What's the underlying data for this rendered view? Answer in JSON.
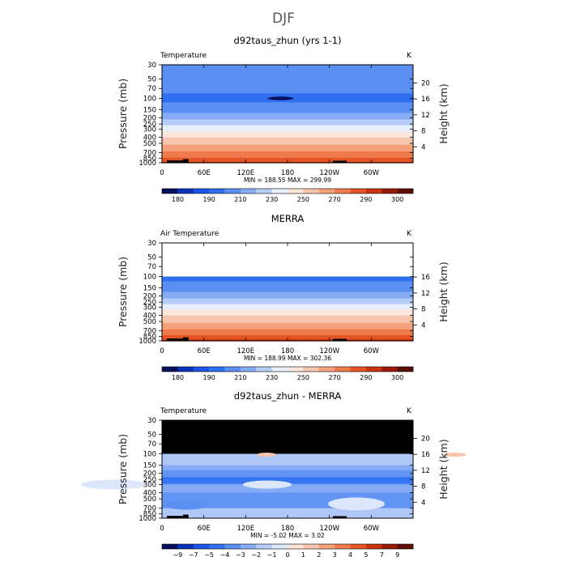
{
  "figure": {
    "title": "DJF"
  },
  "colors": {
    "abs_scale": [
      "#08105e",
      "#0a32b8",
      "#1a54e8",
      "#2f6ff0",
      "#5b8ff2",
      "#86acf5",
      "#b6cdf8",
      "#e7eefc",
      "#fbe6dc",
      "#f7c5ad",
      "#f4a17c",
      "#ef7b4c",
      "#e55424",
      "#c93412",
      "#981a08",
      "#5e0d05"
    ],
    "diff_scale": [
      "#08105e",
      "#0a32b8",
      "#1a54e8",
      "#2f6ff0",
      "#5b8ff2",
      "#86acf5",
      "#b6cdf8",
      "#dce7fb",
      "#fbe4d8",
      "#f7c5ad",
      "#f4a17c",
      "#ef7b4c",
      "#e55424",
      "#c93412",
      "#981a08",
      "#5e0d05"
    ],
    "mask": "#000000"
  },
  "chart_data": [
    {
      "type": "heatmap",
      "title": "d92taus_zhun (yrs 1-1)",
      "left_label": "Temperature",
      "units_label": "K",
      "ylabel": "Pressure (mb)",
      "ylabel_right": "Height (km)",
      "xlabel": "",
      "xticks": [
        "0",
        "60E",
        "120E",
        "180",
        "120W",
        "60W"
      ],
      "xtick_values": [
        0,
        60,
        120,
        180,
        240,
        300
      ],
      "xlim": [
        0,
        360
      ],
      "yticks": [
        "30",
        "50",
        "70",
        "100",
        "150",
        "200",
        "250",
        "300",
        "400",
        "500",
        "700",
        "850",
        "1000"
      ],
      "ytick_values": [
        30,
        50,
        70,
        100,
        150,
        200,
        250,
        300,
        400,
        500,
        700,
        850,
        1000
      ],
      "ylim": [
        30,
        1000
      ],
      "height_ticks": [
        "4",
        "8",
        "12",
        "16",
        "20"
      ],
      "height_values": [
        4,
        8,
        12,
        16,
        20
      ],
      "stats": {
        "min_label": "MIN =",
        "min": "188.55",
        "max_label": "MAX =",
        "max": "299.99"
      },
      "colorbar_labels": [
        "180",
        "190",
        "210",
        "230",
        "250",
        "270",
        "290",
        "300"
      ],
      "colorbar_scale": "abs",
      "profile": {
        "pressure": [
          30,
          50,
          70,
          100,
          150,
          200,
          250,
          300,
          400,
          500,
          700,
          850,
          1000
        ],
        "value": [
          207,
          210,
          203,
          197,
          206,
          217,
          228,
          236,
          249,
          258,
          272,
          281,
          291
        ]
      },
      "mask_top": null
    },
    {
      "type": "heatmap",
      "title": "MERRA",
      "left_label": "Air Temperature",
      "units_label": "K",
      "ylabel": "Pressure (mb)",
      "ylabel_right": "Height (km)",
      "xlabel": "",
      "xticks": [
        "0",
        "60E",
        "120E",
        "180",
        "120W",
        "60W"
      ],
      "xtick_values": [
        0,
        60,
        120,
        180,
        240,
        300
      ],
      "xlim": [
        0,
        360
      ],
      "yticks": [
        "30",
        "50",
        "70",
        "100",
        "150",
        "200",
        "250",
        "300",
        "400",
        "500",
        "700",
        "850",
        "1000"
      ],
      "ytick_values": [
        30,
        50,
        70,
        100,
        150,
        200,
        250,
        300,
        400,
        500,
        700,
        850,
        1000
      ],
      "ylim": [
        30,
        1000
      ],
      "height_ticks": [
        "4",
        "8",
        "12",
        "16"
      ],
      "height_values": [
        4,
        8,
        12,
        16
      ],
      "stats": {
        "min_label": "MIN =",
        "min": "188.99",
        "max_label": "MAX =",
        "max": "302.36"
      },
      "colorbar_labels": [
        "180",
        "190",
        "210",
        "230",
        "250",
        "270",
        "290",
        "300"
      ],
      "colorbar_scale": "abs",
      "profile": {
        "pressure": [
          100,
          150,
          200,
          250,
          300,
          400,
          500,
          700,
          850,
          1000
        ],
        "value": [
          196,
          205,
          216,
          227,
          236,
          249,
          258,
          272,
          282,
          293
        ]
      },
      "blank_above": 100,
      "mask_top": null
    },
    {
      "type": "heatmap",
      "title": "d92taus_zhun - MERRA",
      "left_label": "Temperature",
      "units_label": "K",
      "ylabel": "Pressure (mb)",
      "ylabel_right": "Height (km)",
      "xlabel": "",
      "xticks": [
        "0",
        "60E",
        "120E",
        "180",
        "120W",
        "60W"
      ],
      "xtick_values": [
        0,
        60,
        120,
        180,
        240,
        300
      ],
      "xlim": [
        0,
        360
      ],
      "yticks": [
        "30",
        "50",
        "70",
        "100",
        "150",
        "200",
        "250",
        "300",
        "400",
        "500",
        "700",
        "850",
        "1000"
      ],
      "ytick_values": [
        30,
        50,
        70,
        100,
        150,
        200,
        250,
        300,
        400,
        500,
        700,
        850,
        1000
      ],
      "ylim": [
        30,
        1000
      ],
      "height_ticks": [
        "4",
        "8",
        "12",
        "16",
        "20"
      ],
      "height_values": [
        4,
        8,
        12,
        16,
        20
      ],
      "stats": {
        "min_label": "MIN =",
        "min": "-5.02",
        "max_label": "MAX =",
        "max": "3.02"
      },
      "colorbar_labels": [
        "−9",
        "−7",
        "−5",
        "−4",
        "−3",
        "−2",
        "−1",
        "0",
        "1",
        "2",
        "3",
        "4",
        "5",
        "7",
        "9"
      ],
      "colorbar_scale": "diff",
      "mask_top": 100
    }
  ]
}
